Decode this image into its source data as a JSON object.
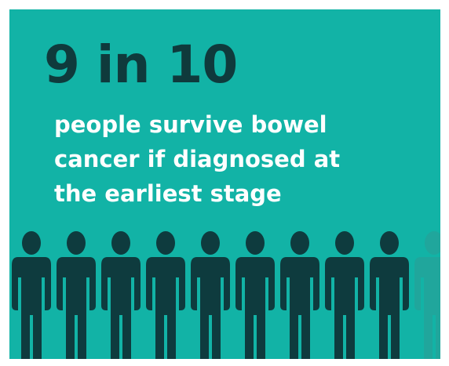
{
  "headline": "9 in 10",
  "subtext_lines": [
    "people survive bowel",
    "cancer if diagnosed at",
    "the earliest stage"
  ],
  "people": {
    "total": 10,
    "highlighted": 9,
    "highlight_color": "#0e3b3e",
    "faded_color": "#20a69c",
    "background_color": "#12b3a6"
  }
}
